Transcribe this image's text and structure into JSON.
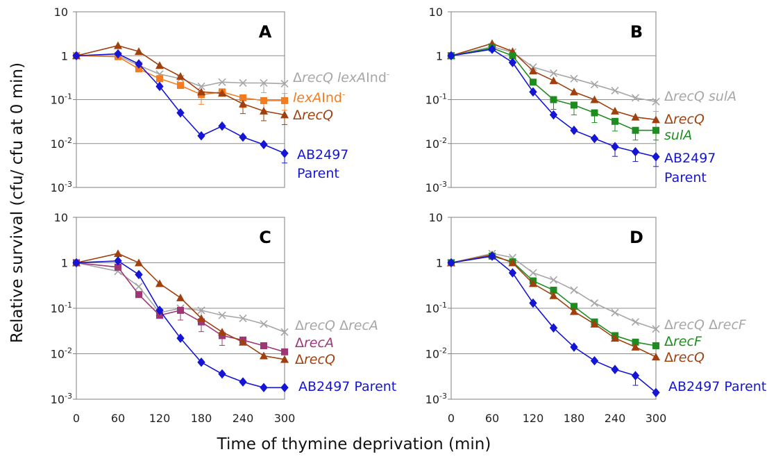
{
  "figure": {
    "xlabel": "Time of thymine deprivation (min)",
    "ylabel": "Relative survival (cfu/ cfu at 0 min)"
  },
  "chart_data": [
    {
      "type": "line",
      "panel": "A",
      "yscale": "log",
      "ylim": [
        0.001,
        10
      ],
      "xlim": [
        0,
        300
      ],
      "yticks": [
        "10",
        "1",
        "10^-1",
        "10^-2",
        "10^-3"
      ],
      "xticks": [],
      "grid": true,
      "series": [
        {
          "key": "recq_lexa",
          "label": [
            {
              "t": "Δ"
            },
            {
              "t": "recQ",
              "i": true
            },
            {
              "t": " "
            },
            {
              "t": "lexA",
              "i": true
            },
            {
              "t": "Ind"
            },
            {
              "t": "-",
              "sup": true
            }
          ],
          "color": "#a6a6a6",
          "marker": "x",
          "x": [
            0,
            60,
            90,
            120,
            150,
            180,
            210,
            240,
            270,
            300
          ],
          "y": [
            1,
            1.0,
            0.6,
            0.38,
            0.3,
            0.2,
            0.25,
            0.24,
            0.24,
            0.23
          ]
        },
        {
          "key": "lexa",
          "label": [
            {
              "t": "lexA",
              "i": true
            },
            {
              "t": "Ind"
            },
            {
              "t": "-",
              "sup": true
            }
          ],
          "color": "#f47c20",
          "marker": "square",
          "x": [
            0,
            60,
            90,
            120,
            150,
            180,
            210,
            240,
            270,
            300
          ],
          "y": [
            1,
            0.95,
            0.5,
            0.3,
            0.21,
            0.13,
            0.15,
            0.11,
            0.095,
            0.095
          ]
        },
        {
          "key": "recq",
          "label": [
            {
              "t": "Δ"
            },
            {
              "t": "recQ",
              "i": true
            }
          ],
          "color": "#a0400f",
          "marker": "triangle",
          "x": [
            0,
            60,
            90,
            120,
            150,
            180,
            210,
            240,
            270,
            300
          ],
          "y": [
            1,
            1.7,
            1.25,
            0.6,
            0.34,
            0.15,
            0.14,
            0.08,
            0.055,
            0.045
          ]
        },
        {
          "key": "parent",
          "label": [
            {
              "t": "AB2497"
            }
          ],
          "label2": "Parent",
          "color": "#1515d6",
          "marker": "diamond",
          "x": [
            0,
            60,
            90,
            120,
            150,
            180,
            210,
            240,
            270,
            300
          ],
          "y": [
            1,
            1.1,
            0.65,
            0.2,
            0.05,
            0.015,
            0.025,
            0.014,
            0.0095,
            0.006
          ]
        }
      ]
    },
    {
      "type": "line",
      "panel": "B",
      "yscale": "log",
      "ylim": [
        0.001,
        10
      ],
      "xlim": [
        0,
        300
      ],
      "yticks": [
        "10",
        "1",
        "10^-1",
        "10^-2",
        "10^-3"
      ],
      "xticks": [],
      "grid": true,
      "series": [
        {
          "key": "recq_sula",
          "label": [
            {
              "t": "Δ"
            },
            {
              "t": "recQ sulA",
              "i": true
            }
          ],
          "color": "#a6a6a6",
          "marker": "x",
          "x": [
            0,
            60,
            90,
            120,
            150,
            180,
            210,
            240,
            270,
            300
          ],
          "y": [
            1,
            1.6,
            1.2,
            0.55,
            0.4,
            0.3,
            0.22,
            0.16,
            0.11,
            0.09
          ]
        },
        {
          "key": "recq",
          "label": [
            {
              "t": "Δ"
            },
            {
              "t": "recQ",
              "i": true
            }
          ],
          "color": "#a0400f",
          "marker": "triangle",
          "x": [
            0,
            60,
            90,
            120,
            150,
            180,
            210,
            240,
            270,
            300
          ],
          "y": [
            1,
            1.9,
            1.25,
            0.45,
            0.27,
            0.15,
            0.1,
            0.055,
            0.04,
            0.035
          ]
        },
        {
          "key": "sula",
          "label": [
            {
              "t": "sulA",
              "i": true
            }
          ],
          "color": "#1e8c1e",
          "marker": "square",
          "x": [
            0,
            60,
            90,
            120,
            150,
            180,
            210,
            240,
            270,
            300
          ],
          "y": [
            1,
            1.5,
            1.0,
            0.25,
            0.1,
            0.075,
            0.05,
            0.032,
            0.02,
            0.02
          ]
        },
        {
          "key": "parent",
          "label": [
            {
              "t": "AB2497"
            }
          ],
          "label2": "Parent",
          "color": "#1515d6",
          "marker": "diamond",
          "x": [
            0,
            60,
            90,
            120,
            150,
            180,
            210,
            240,
            270,
            300
          ],
          "y": [
            1,
            1.4,
            0.7,
            0.15,
            0.045,
            0.02,
            0.013,
            0.0085,
            0.0065,
            0.005
          ]
        }
      ]
    },
    {
      "type": "line",
      "panel": "C",
      "yscale": "log",
      "ylim": [
        0.001,
        10
      ],
      "xlim": [
        0,
        300
      ],
      "yticks": [
        "10",
        "1",
        "10^-1",
        "10^-2",
        "10^-3"
      ],
      "xticks": [
        "0",
        "60",
        "120",
        "180",
        "240",
        "300"
      ],
      "grid": true,
      "series": [
        {
          "key": "recq_reca",
          "label": [
            {
              "t": "Δ"
            },
            {
              "t": "recQ",
              "i": true
            },
            {
              "t": " Δ"
            },
            {
              "t": "recA",
              "i": true
            }
          ],
          "color": "#a6a6a6",
          "marker": "x",
          "x": [
            0,
            60,
            90,
            120,
            150,
            180,
            210,
            240,
            270,
            300
          ],
          "y": [
            1,
            0.65,
            0.3,
            0.08,
            0.1,
            0.09,
            0.07,
            0.06,
            0.045,
            0.03
          ]
        },
        {
          "key": "reca",
          "label": [
            {
              "t": "Δ"
            },
            {
              "t": "recA",
              "i": true
            }
          ],
          "color": "#9e3775",
          "marker": "square",
          "x": [
            0,
            60,
            90,
            120,
            150,
            180,
            210,
            240,
            270,
            300
          ],
          "y": [
            1,
            0.8,
            0.2,
            0.07,
            0.09,
            0.05,
            0.025,
            0.02,
            0.015,
            0.011
          ]
        },
        {
          "key": "recq",
          "label": [
            {
              "t": "Δ"
            },
            {
              "t": "recQ",
              "i": true
            }
          ],
          "color": "#a0400f",
          "marker": "triangle",
          "x": [
            0,
            60,
            90,
            120,
            150,
            180,
            210,
            240,
            270,
            300
          ],
          "y": [
            1,
            1.6,
            1.0,
            0.35,
            0.17,
            0.06,
            0.03,
            0.018,
            0.009,
            0.0075
          ]
        },
        {
          "key": "parent",
          "label": [
            {
              "t": "AB2497 Parent"
            }
          ],
          "color": "#1515d6",
          "marker": "diamond",
          "x": [
            0,
            60,
            90,
            120,
            150,
            180,
            210,
            240,
            270,
            300
          ],
          "y": [
            1,
            1.1,
            0.55,
            0.09,
            0.022,
            0.0065,
            0.0036,
            0.0024,
            0.0018,
            0.0018
          ]
        }
      ]
    },
    {
      "type": "line",
      "panel": "D",
      "yscale": "log",
      "ylim": [
        0.001,
        10
      ],
      "xlim": [
        0,
        300
      ],
      "yticks": [
        "10",
        "1",
        "10^-1",
        "10^-2",
        "10^-3"
      ],
      "xticks": [
        "0",
        "60",
        "120",
        "180",
        "240",
        "300"
      ],
      "grid": true,
      "series": [
        {
          "key": "recq_recf",
          "label": [
            {
              "t": "Δ"
            },
            {
              "t": "recQ",
              "i": true
            },
            {
              "t": " Δ"
            },
            {
              "t": "recF",
              "i": true
            }
          ],
          "color": "#a6a6a6",
          "marker": "x",
          "x": [
            0,
            60,
            90,
            120,
            150,
            180,
            210,
            240,
            270,
            300
          ],
          "y": [
            1,
            1.6,
            1.3,
            0.6,
            0.42,
            0.25,
            0.13,
            0.08,
            0.05,
            0.035
          ]
        },
        {
          "key": "recf",
          "label": [
            {
              "t": "Δ"
            },
            {
              "t": "recF",
              "i": true
            }
          ],
          "color": "#1e8c1e",
          "marker": "square",
          "x": [
            0,
            60,
            90,
            120,
            150,
            180,
            210,
            240,
            270,
            300
          ],
          "y": [
            1,
            1.4,
            1.05,
            0.4,
            0.25,
            0.11,
            0.05,
            0.025,
            0.018,
            0.015
          ]
        },
        {
          "key": "recq",
          "label": [
            {
              "t": "Δ"
            },
            {
              "t": "recQ",
              "i": true
            }
          ],
          "color": "#a0400f",
          "marker": "triangle",
          "x": [
            0,
            60,
            90,
            120,
            150,
            180,
            210,
            240,
            270,
            300
          ],
          "y": [
            1,
            1.5,
            1.0,
            0.35,
            0.19,
            0.085,
            0.045,
            0.022,
            0.014,
            0.0085
          ]
        },
        {
          "key": "parent",
          "label": [
            {
              "t": "AB2497 Parent"
            }
          ],
          "color": "#1515d6",
          "marker": "diamond",
          "x": [
            0,
            60,
            90,
            120,
            150,
            180,
            210,
            240,
            270,
            300
          ],
          "y": [
            1,
            1.4,
            0.6,
            0.13,
            0.037,
            0.014,
            0.007,
            0.0045,
            0.0033,
            0.0014
          ]
        }
      ]
    }
  ]
}
